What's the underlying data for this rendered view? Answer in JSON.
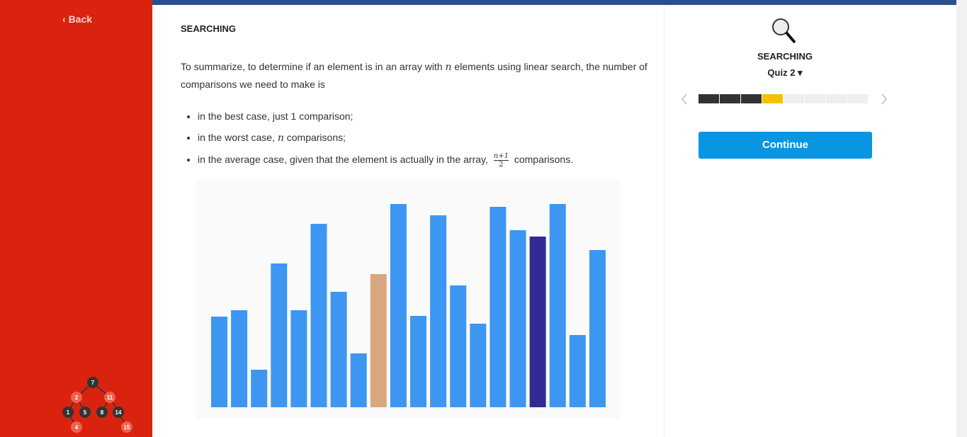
{
  "sidebar": {
    "back": "Back",
    "tree": [
      "7",
      "2",
      "11",
      "1",
      "5",
      "8",
      "14",
      "4",
      "15"
    ]
  },
  "content": {
    "title": "SEARCHING",
    "paragraph": [
      "To summarize, to determine if an element is in an array with ",
      "n",
      " elements using linear search, the number of comparisons we need to make is"
    ],
    "bullets": [
      [
        "in the best case, just 1 comparison;"
      ],
      [
        "in the worst case, ",
        "n",
        " comparisons;"
      ],
      [
        "in the average case, given that the element is actually in the array, ",
        "n+1",
        "2",
        " comparisons."
      ]
    ]
  },
  "panel": {
    "title": "SEARCHING",
    "quiz": "Quiz 2",
    "button": "Continue"
  }
}
